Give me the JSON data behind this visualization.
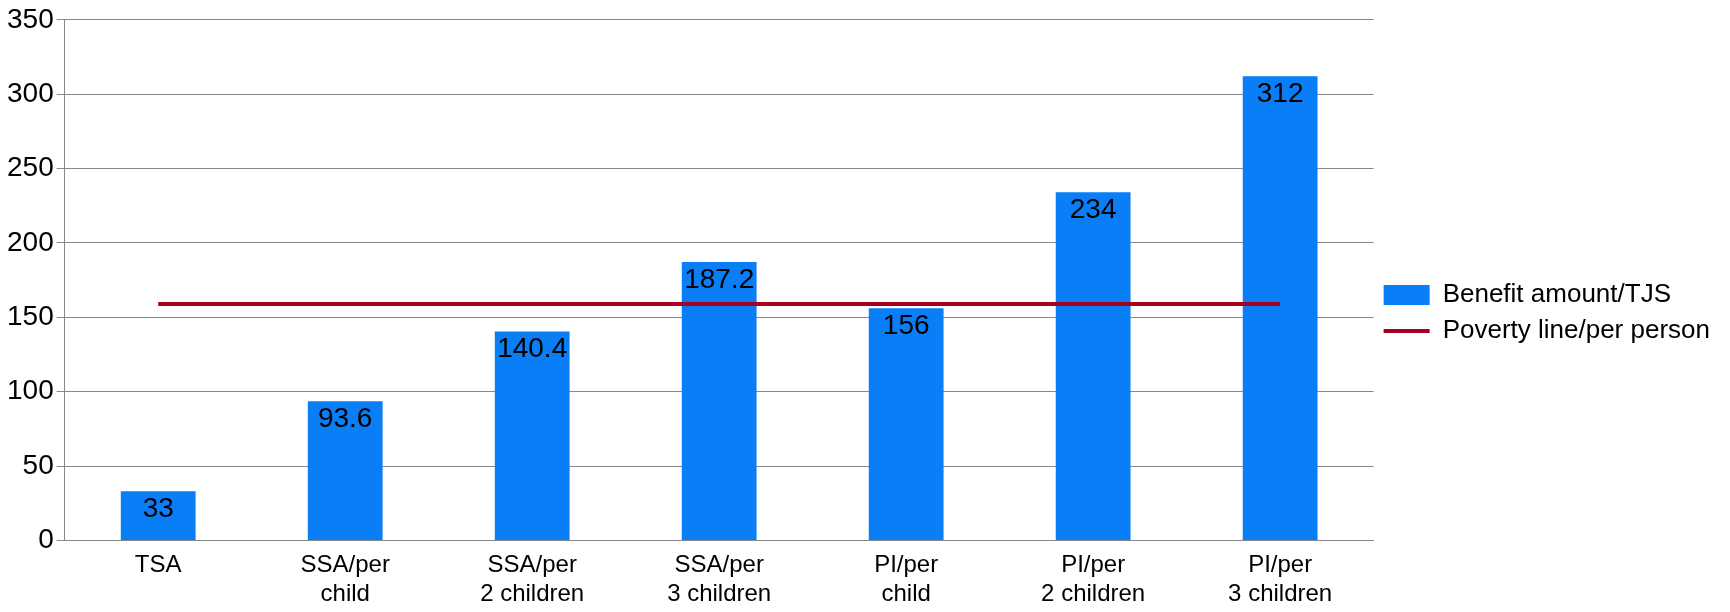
{
  "chart_data": {
    "type": "bar",
    "categories": [
      "TSA",
      "SSA/per child",
      "SSA/per 2 children",
      "SSA/per 3 children",
      "PI/per child",
      "PI/per 2 children",
      "PI/per 3 children"
    ],
    "series": [
      {
        "name": "Benefit amount/TJS",
        "color": "#0a7ef7",
        "values": [
          33,
          93.6,
          140.4,
          187.2,
          156,
          234,
          312
        ],
        "value_labels": [
          "33",
          "93.6",
          "140.4",
          "187.2",
          "156",
          "234",
          "312"
        ]
      },
      {
        "name": "Poverty line/per person",
        "type": "line",
        "color": "#a50021",
        "values": [
          159,
          159,
          159,
          159,
          159,
          159,
          159
        ],
        "marker": "none"
      }
    ],
    "ylim": [
      0,
      350
    ],
    "yticks": [
      0,
      50,
      100,
      150,
      200,
      250,
      300,
      350
    ],
    "grid": "y",
    "legend": "right"
  }
}
